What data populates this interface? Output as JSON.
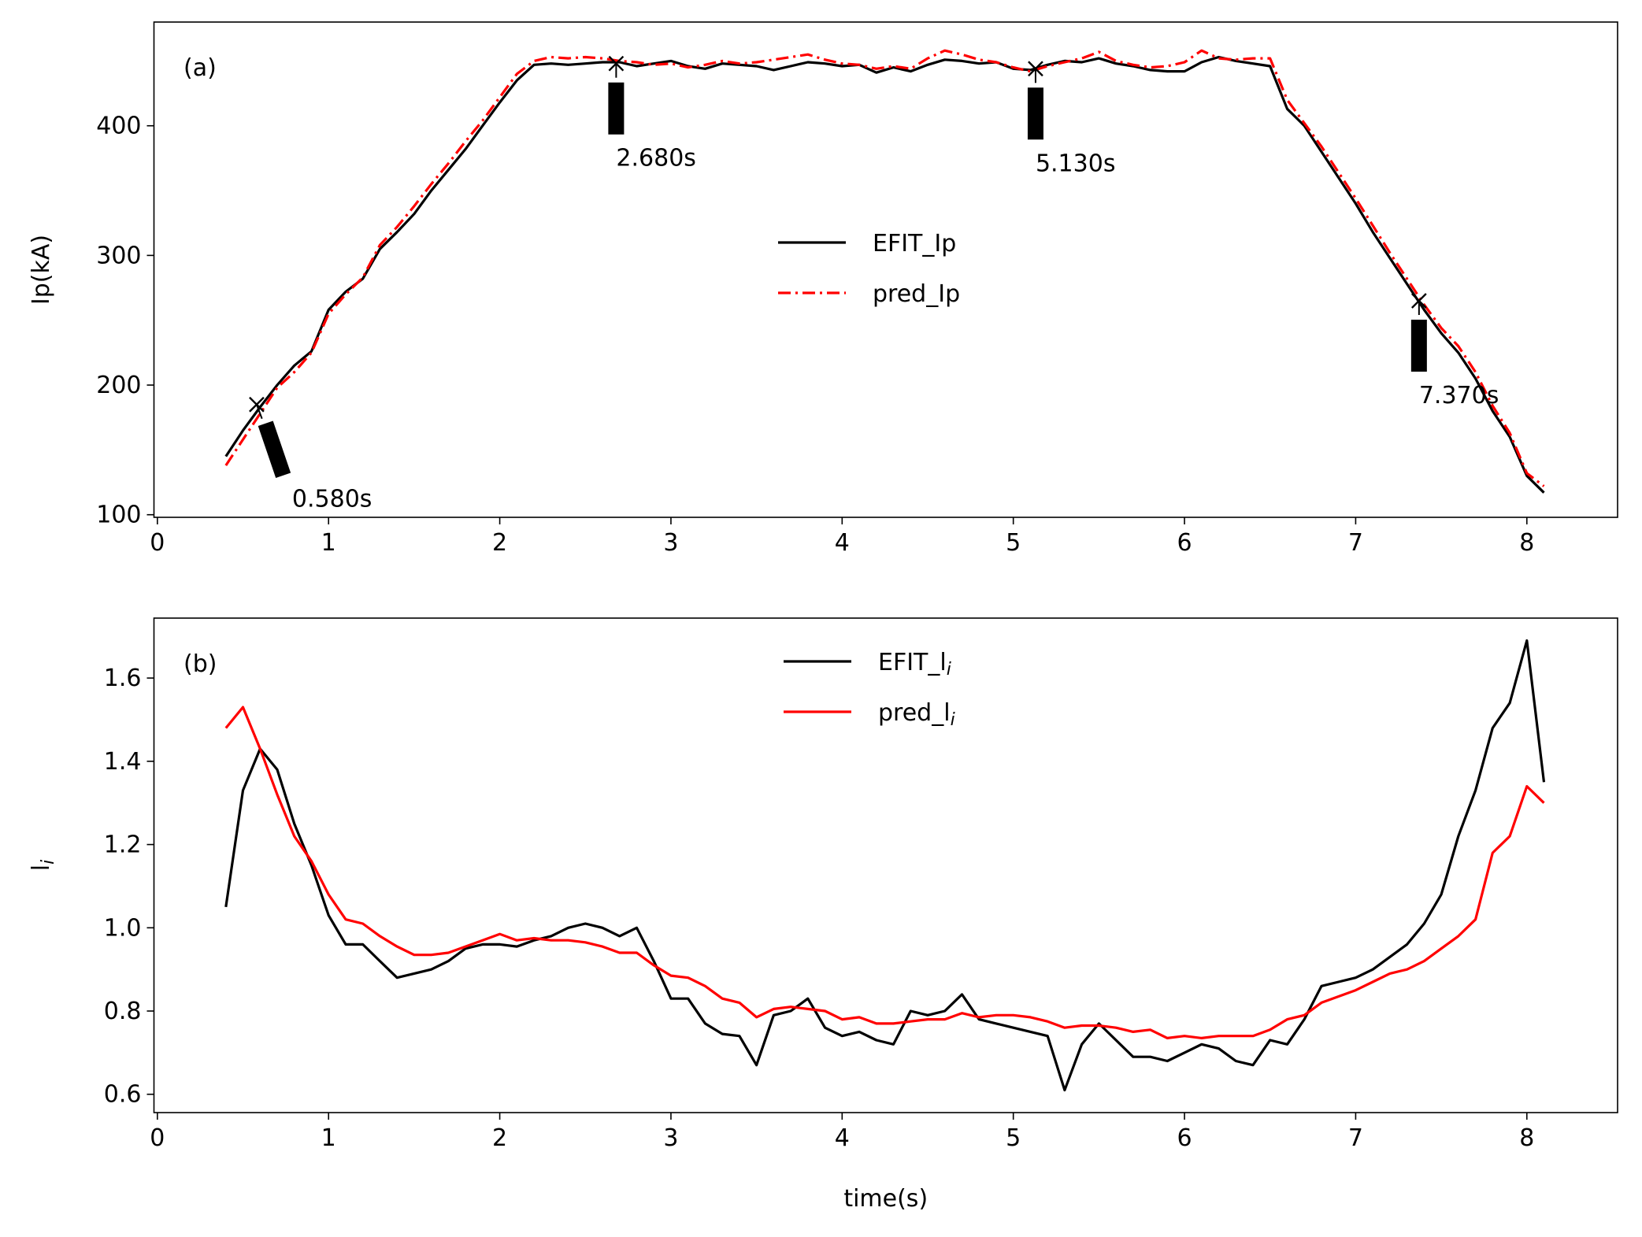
{
  "chart_data": [
    {
      "type": "line",
      "panel_label": "(a)",
      "ylabel": "Ip(kA)",
      "x": [
        0.4,
        0.5,
        0.6,
        0.7,
        0.8,
        0.9,
        1.0,
        1.1,
        1.2,
        1.3,
        1.4,
        1.5,
        1.6,
        1.7,
        1.8,
        1.9,
        2.0,
        2.1,
        2.2,
        2.3,
        2.4,
        2.5,
        2.6,
        2.7,
        2.8,
        2.9,
        3.0,
        3.1,
        3.2,
        3.3,
        3.4,
        3.5,
        3.6,
        3.7,
        3.8,
        3.9,
        4.0,
        4.1,
        4.2,
        4.3,
        4.4,
        4.5,
        4.6,
        4.7,
        4.8,
        4.9,
        5.0,
        5.1,
        5.2,
        5.3,
        5.4,
        5.5,
        5.6,
        5.7,
        5.8,
        5.9,
        6.0,
        6.1,
        6.2,
        6.3,
        6.4,
        6.5,
        6.6,
        6.7,
        6.8,
        6.9,
        7.0,
        7.1,
        7.2,
        7.3,
        7.4,
        7.5,
        7.6,
        7.7,
        7.8,
        7.9,
        8.0,
        8.1
      ],
      "series": [
        {
          "name": "EFIT_Ip",
          "color": "#000000",
          "linestyle": "solid",
          "values": [
            145,
            165,
            183,
            200,
            215,
            226,
            258,
            272,
            282,
            305,
            318,
            332,
            350,
            366,
            382,
            400,
            418,
            435,
            447,
            448,
            447,
            448,
            449,
            449,
            446,
            448,
            450,
            446,
            444,
            448,
            447,
            446,
            443,
            446,
            449,
            448,
            446,
            447,
            441,
            445,
            442,
            447,
            451,
            450,
            448,
            449,
            444,
            443,
            447,
            450,
            449,
            452,
            448,
            446,
            443,
            442,
            442,
            449,
            453,
            450,
            448,
            446,
            413,
            400,
            380,
            360,
            340,
            318,
            298,
            278,
            258,
            240,
            225,
            205,
            180,
            160,
            130,
            117
          ]
        },
        {
          "name": "pred_Ip",
          "color": "#ff0000",
          "linestyle": "dashdot",
          "values": [
            138,
            158,
            178,
            198,
            210,
            225,
            255,
            270,
            283,
            308,
            322,
            338,
            355,
            371,
            388,
            404,
            422,
            440,
            450,
            453,
            452,
            453,
            452,
            450,
            449,
            447,
            448,
            445,
            447,
            450,
            448,
            449,
            451,
            453,
            455,
            451,
            448,
            447,
            444,
            446,
            444,
            452,
            458,
            455,
            451,
            449,
            445,
            442,
            446,
            449,
            452,
            457,
            450,
            447,
            445,
            446,
            449,
            458,
            452,
            451,
            452,
            452,
            420,
            402,
            384,
            364,
            344,
            323,
            302,
            282,
            262,
            244,
            230,
            210,
            184,
            163,
            132,
            122
          ]
        }
      ],
      "annotations": [
        {
          "x": 0.58,
          "y": 185,
          "text": "0.580s"
        },
        {
          "x": 2.68,
          "y": 448,
          "text": "2.680s"
        },
        {
          "x": 5.13,
          "y": 444,
          "text": "5.130s"
        },
        {
          "x": 7.37,
          "y": 265,
          "text": "7.370s"
        }
      ],
      "xlim": [
        -0.02,
        8.53
      ],
      "xticks": [
        0,
        1,
        2,
        3,
        4,
        5,
        6,
        7,
        8
      ],
      "ylim": [
        98,
        480
      ],
      "yticks": [
        100,
        200,
        300,
        400
      ],
      "legend": "center"
    },
    {
      "type": "line",
      "panel_label": "(b)",
      "ylabel": "li",
      "xlabel": "time(s)",
      "x": [
        0.4,
        0.5,
        0.6,
        0.7,
        0.8,
        0.9,
        1.0,
        1.1,
        1.2,
        1.3,
        1.4,
        1.5,
        1.6,
        1.7,
        1.8,
        1.9,
        2.0,
        2.1,
        2.2,
        2.3,
        2.4,
        2.5,
        2.6,
        2.7,
        2.8,
        2.9,
        3.0,
        3.1,
        3.2,
        3.3,
        3.4,
        3.5,
        3.6,
        3.7,
        3.8,
        3.9,
        4.0,
        4.1,
        4.2,
        4.3,
        4.4,
        4.5,
        4.6,
        4.7,
        4.8,
        4.9,
        5.0,
        5.1,
        5.2,
        5.3,
        5.4,
        5.5,
        5.6,
        5.7,
        5.8,
        5.9,
        6.0,
        6.1,
        6.2,
        6.3,
        6.4,
        6.5,
        6.6,
        6.7,
        6.8,
        6.9,
        7.0,
        7.1,
        7.2,
        7.3,
        7.4,
        7.5,
        7.6,
        7.7,
        7.8,
        7.9,
        8.0,
        8.1
      ],
      "series": [
        {
          "name": "EFIT_li",
          "color": "#000000",
          "linestyle": "solid",
          "values": [
            1.05,
            1.33,
            1.43,
            1.38,
            1.25,
            1.15,
            1.03,
            0.96,
            0.96,
            0.92,
            0.88,
            0.89,
            0.9,
            0.92,
            0.95,
            0.96,
            0.96,
            0.955,
            0.97,
            0.98,
            1.0,
            1.01,
            1.0,
            0.98,
            1.0,
            0.92,
            0.83,
            0.83,
            0.77,
            0.745,
            0.74,
            0.67,
            0.79,
            0.8,
            0.83,
            0.76,
            0.74,
            0.75,
            0.73,
            0.72,
            0.8,
            0.79,
            0.8,
            0.84,
            0.78,
            0.77,
            0.76,
            0.75,
            0.74,
            0.61,
            0.72,
            0.77,
            0.73,
            0.69,
            0.69,
            0.68,
            0.7,
            0.72,
            0.71,
            0.68,
            0.67,
            0.73,
            0.72,
            0.78,
            0.86,
            0.87,
            0.88,
            0.9,
            0.93,
            0.96,
            1.01,
            1.08,
            1.22,
            1.33,
            1.48,
            1.54,
            1.69,
            1.35
          ]
        },
        {
          "name": "pred_li",
          "color": "#ff0000",
          "linestyle": "solid",
          "values": [
            1.48,
            1.53,
            1.43,
            1.32,
            1.22,
            1.16,
            1.08,
            1.02,
            1.01,
            0.98,
            0.955,
            0.935,
            0.935,
            0.94,
            0.955,
            0.97,
            0.985,
            0.97,
            0.975,
            0.97,
            0.97,
            0.965,
            0.955,
            0.94,
            0.94,
            0.91,
            0.885,
            0.88,
            0.86,
            0.83,
            0.82,
            0.785,
            0.805,
            0.81,
            0.805,
            0.8,
            0.78,
            0.785,
            0.77,
            0.77,
            0.775,
            0.78,
            0.78,
            0.795,
            0.785,
            0.79,
            0.79,
            0.785,
            0.775,
            0.76,
            0.765,
            0.765,
            0.76,
            0.75,
            0.755,
            0.735,
            0.74,
            0.735,
            0.74,
            0.74,
            0.74,
            0.755,
            0.78,
            0.79,
            0.82,
            0.835,
            0.85,
            0.87,
            0.89,
            0.9,
            0.92,
            0.95,
            0.98,
            1.02,
            1.18,
            1.22,
            1.34,
            1.3
          ]
        }
      ],
      "xlim": [
        -0.02,
        8.53
      ],
      "xticks": [
        0,
        1,
        2,
        3,
        4,
        5,
        6,
        7,
        8
      ],
      "ylim": [
        0.556,
        1.744
      ],
      "yticks": [
        0.6,
        0.8,
        {
          "value": 1,
          "label": "1.0"
        },
        1.2,
        1.4,
        1.6
      ],
      "legend": "upper center"
    }
  ]
}
